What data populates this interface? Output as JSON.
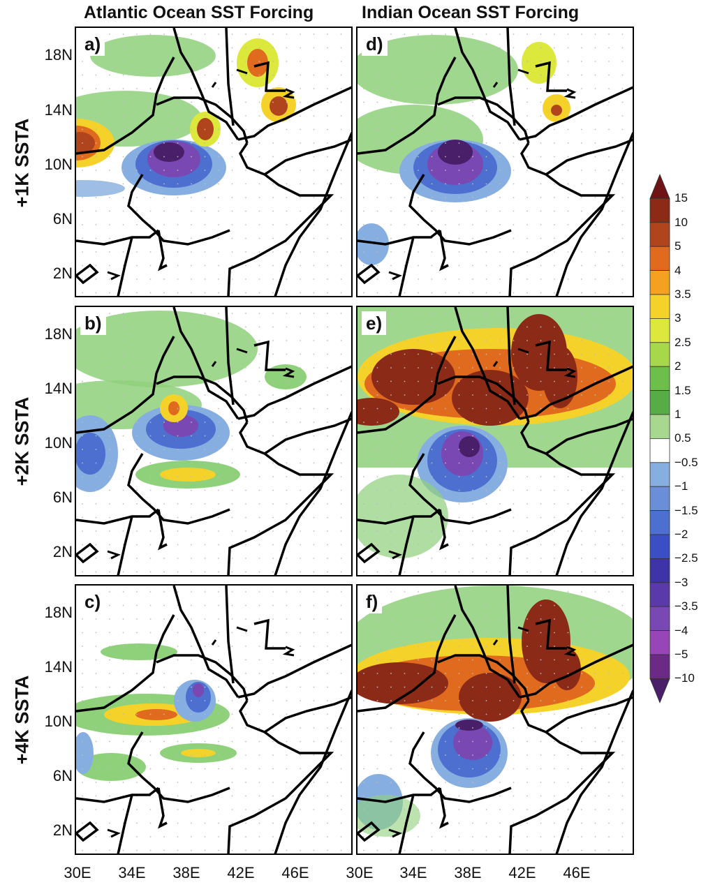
{
  "columns": [
    "Atlantic Ocean SST Forcing",
    "Indian Ocean SST Forcing"
  ],
  "rows": [
    "+1K SSTA",
    "+2K SSTA",
    "+4K SSTA"
  ],
  "panel_labels": [
    "a)",
    "d)",
    "b)",
    "e)",
    "c)",
    "f)"
  ],
  "lat_ticks": [
    "18N",
    "14N",
    "10N",
    "6N",
    "2N"
  ],
  "lon_ticks": [
    "30E",
    "34E",
    "38E",
    "42E",
    "46E"
  ],
  "colorbar": {
    "labels": [
      "15",
      "10",
      "5",
      "4",
      "3.5",
      "3",
      "2.5",
      "2",
      "1.5",
      "1",
      "0.5",
      "−0.5",
      "−1",
      "−1.5",
      "−2",
      "−2.5",
      "−3",
      "−3.5",
      "−4",
      "−5",
      "−10"
    ],
    "colors": [
      "#6e1416",
      "#8c2a18",
      "#b0441c",
      "#e06a1e",
      "#f4a020",
      "#f5d22a",
      "#dce83c",
      "#a6d84a",
      "#6cbf4a",
      "#56ad46",
      "#a8d890",
      "#ffffff",
      "#86aee0",
      "#6a8fd8",
      "#4d6fd0",
      "#3a4fc4",
      "#3f33a8",
      "#5a3aa8",
      "#7a48b2",
      "#9845b8",
      "#6a2a86",
      "#4a1f6a"
    ]
  },
  "map_extent": {
    "lon": [
      30,
      50
    ],
    "lat": [
      0,
      20
    ]
  }
}
